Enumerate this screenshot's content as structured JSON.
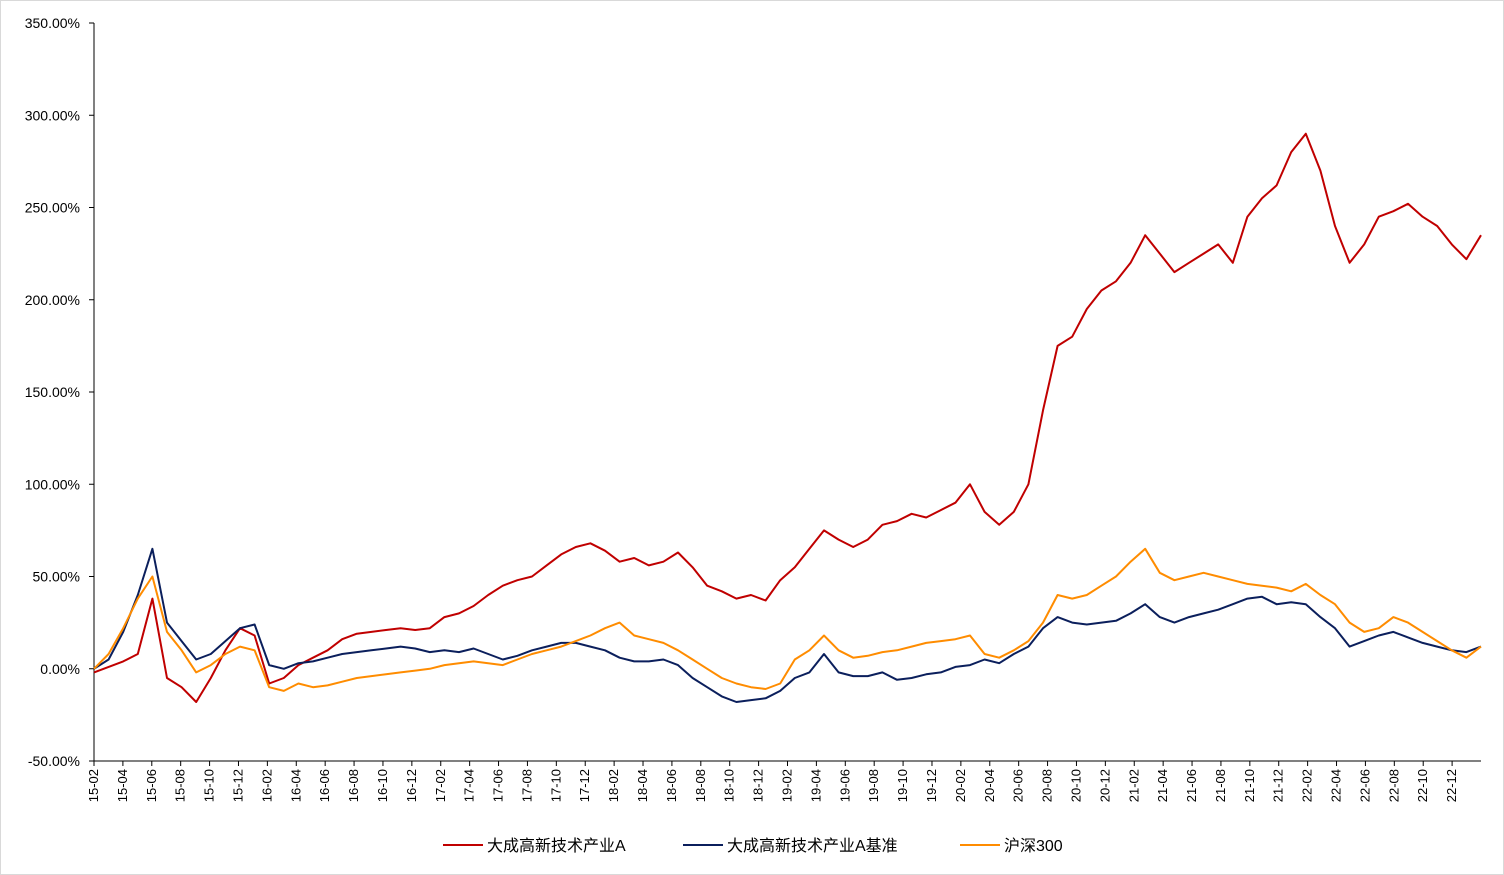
{
  "chart_data": {
    "type": "line",
    "yTicks": [
      "350.00%",
      "300.00%",
      "250.00%",
      "200.00%",
      "150.00%",
      "100.00%",
      "50.00%",
      "0.00%",
      "-50.00%"
    ],
    "ylim": [
      -50,
      350
    ],
    "xTicks": [
      "15-02",
      "15-04",
      "15-06",
      "15-08",
      "15-10",
      "15-12",
      "16-02",
      "16-04",
      "16-06",
      "16-08",
      "16-10",
      "16-12",
      "17-02",
      "17-04",
      "17-06",
      "17-08",
      "17-10",
      "17-12",
      "18-02",
      "18-04",
      "18-06",
      "18-08",
      "18-10",
      "18-12",
      "19-02",
      "19-04",
      "19-06",
      "19-08",
      "19-10",
      "19-12",
      "20-02",
      "20-04",
      "20-06",
      "20-08",
      "20-10",
      "20-12",
      "21-02",
      "21-04",
      "21-06",
      "21-08",
      "21-10",
      "21-12",
      "22-02",
      "22-04",
      "22-06",
      "22-08",
      "22-10",
      "22-12"
    ],
    "x": [
      "15-02",
      "15-03",
      "15-04",
      "15-05",
      "15-06",
      "15-07",
      "15-08",
      "15-09",
      "15-10",
      "15-11",
      "15-12",
      "16-01",
      "16-02",
      "16-03",
      "16-04",
      "16-05",
      "16-06",
      "16-07",
      "16-08",
      "16-09",
      "16-10",
      "16-11",
      "16-12",
      "17-01",
      "17-02",
      "17-03",
      "17-04",
      "17-05",
      "17-06",
      "17-07",
      "17-08",
      "17-09",
      "17-10",
      "17-11",
      "17-12",
      "18-01",
      "18-02",
      "18-03",
      "18-04",
      "18-05",
      "18-06",
      "18-07",
      "18-08",
      "18-09",
      "18-10",
      "18-11",
      "18-12",
      "19-01",
      "19-02",
      "19-03",
      "19-04",
      "19-05",
      "19-06",
      "19-07",
      "19-08",
      "19-09",
      "19-10",
      "19-11",
      "19-12",
      "20-01",
      "20-02",
      "20-03",
      "20-04",
      "20-05",
      "20-06",
      "20-07",
      "20-08",
      "20-09",
      "20-10",
      "20-11",
      "20-12",
      "21-01",
      "21-02",
      "21-03",
      "21-04",
      "21-05",
      "21-06",
      "21-07",
      "21-08",
      "21-09",
      "21-10",
      "21-11",
      "21-12",
      "22-01",
      "22-02",
      "22-03",
      "22-04",
      "22-05",
      "22-06",
      "22-07",
      "22-08",
      "22-09",
      "22-10",
      "22-11",
      "22-12",
      "23-01"
    ],
    "series": [
      {
        "name": "大成高新技术产业A",
        "color": "#c00000",
        "values": [
          -2,
          1,
          4,
          8,
          38,
          -5,
          -10,
          -18,
          -5,
          10,
          22,
          18,
          -8,
          -5,
          2,
          6,
          10,
          16,
          19,
          20,
          21,
          22,
          21,
          22,
          28,
          30,
          34,
          40,
          45,
          48,
          50,
          56,
          62,
          66,
          68,
          64,
          58,
          60,
          56,
          58,
          63,
          55,
          45,
          42,
          38,
          40,
          37,
          48,
          55,
          65,
          75,
          70,
          66,
          70,
          78,
          80,
          84,
          82,
          86,
          90,
          100,
          85,
          78,
          85,
          100,
          140,
          175,
          180,
          195,
          205,
          210,
          220,
          235,
          225,
          215,
          220,
          225,
          230,
          220,
          245,
          255,
          262,
          280,
          290,
          270,
          240,
          220,
          230,
          245,
          248,
          252,
          245,
          240,
          230,
          222,
          235
        ]
      },
      {
        "name": "大成高新技术产业A基准",
        "color": "#0b1f5c",
        "values": [
          0,
          5,
          20,
          40,
          65,
          25,
          15,
          5,
          8,
          15,
          22,
          24,
          2,
          0,
          3,
          4,
          6,
          8,
          9,
          10,
          11,
          12,
          11,
          9,
          10,
          9,
          11,
          8,
          5,
          7,
          10,
          12,
          14,
          14,
          12,
          10,
          6,
          4,
          4,
          5,
          2,
          -5,
          -10,
          -15,
          -18,
          -17,
          -16,
          -12,
          -5,
          -2,
          8,
          -2,
          -4,
          -4,
          -2,
          -6,
          -5,
          -3,
          -2,
          1,
          2,
          5,
          3,
          8,
          12,
          22,
          28,
          25,
          24,
          25,
          26,
          30,
          35,
          28,
          25,
          28,
          30,
          32,
          35,
          38,
          39,
          35,
          36,
          35,
          28,
          22,
          12,
          15,
          18,
          20,
          17,
          14,
          12,
          10,
          9,
          12
        ]
      },
      {
        "name": "沪深300",
        "color": "#ff8c00",
        "values": [
          0,
          8,
          22,
          38,
          50,
          20,
          10,
          -2,
          2,
          8,
          12,
          10,
          -10,
          -12,
          -8,
          -10,
          -9,
          -7,
          -5,
          -4,
          -3,
          -2,
          -1,
          0,
          2,
          3,
          4,
          3,
          2,
          5,
          8,
          10,
          12,
          15,
          18,
          22,
          25,
          18,
          16,
          14,
          10,
          5,
          0,
          -5,
          -8,
          -10,
          -11,
          -8,
          5,
          10,
          18,
          10,
          6,
          7,
          9,
          10,
          12,
          14,
          15,
          16,
          18,
          8,
          6,
          10,
          15,
          25,
          40,
          38,
          40,
          45,
          50,
          58,
          65,
          52,
          48,
          50,
          52,
          50,
          48,
          46,
          45,
          44,
          42,
          46,
          40,
          35,
          25,
          20,
          22,
          28,
          25,
          20,
          15,
          10,
          6,
          12
        ]
      }
    ]
  }
}
